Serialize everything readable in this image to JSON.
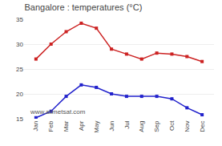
{
  "chart_data": {
    "type": "line",
    "title": "Bangalore : temperatures (°C)",
    "categories": [
      "Jan",
      "Feb",
      "Mar",
      "Apr",
      "May",
      "Jun",
      "Jul",
      "Aug",
      "Sep",
      "Oct",
      "Nov",
      "Dec"
    ],
    "series": [
      {
        "color": "#cc2222",
        "marker": "square",
        "values": [
          27,
          30,
          32.5,
          34.2,
          33.2,
          29,
          28,
          27,
          28.2,
          28,
          27.5,
          26.5
        ]
      },
      {
        "color": "#2222cc",
        "marker": "square",
        "values": [
          15.2,
          16.5,
          19.5,
          21.8,
          21.3,
          20,
          19.5,
          19.5,
          19.5,
          19,
          17.2,
          15.8
        ]
      }
    ],
    "ylim": [
      15,
      35
    ],
    "yticks": [
      15,
      20,
      25,
      30,
      35
    ],
    "grid": true,
    "annotations": [
      "www.allmetsat.com"
    ]
  }
}
